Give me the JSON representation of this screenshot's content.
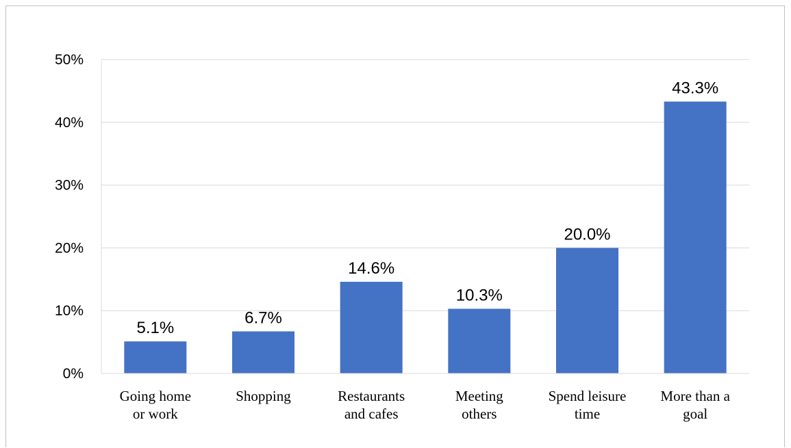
{
  "chart_data": {
    "type": "bar",
    "categories": [
      [
        "Going home",
        "or work"
      ],
      [
        "Shopping"
      ],
      [
        "Restaurants",
        "and cafes"
      ],
      [
        "Meeting",
        "others"
      ],
      [
        "Spend leisure",
        "time"
      ],
      [
        "More than a",
        "goal"
      ]
    ],
    "values": [
      5.1,
      6.7,
      14.6,
      10.3,
      20.0,
      43.3
    ],
    "data_labels": [
      "5.1%",
      "6.7%",
      "14.6%",
      "10.3%",
      "20.0%",
      "43.3%"
    ],
    "ylim": [
      0,
      50
    ],
    "yticks": [
      0,
      10,
      20,
      30,
      40,
      50
    ],
    "ytick_labels": [
      "0%",
      "10%",
      "20%",
      "30%",
      "40%",
      "50%"
    ],
    "title": "",
    "xlabel": "",
    "ylabel": "",
    "grid": true,
    "bar_color": "#4472c4",
    "grid_color": "#d9d9d9"
  }
}
